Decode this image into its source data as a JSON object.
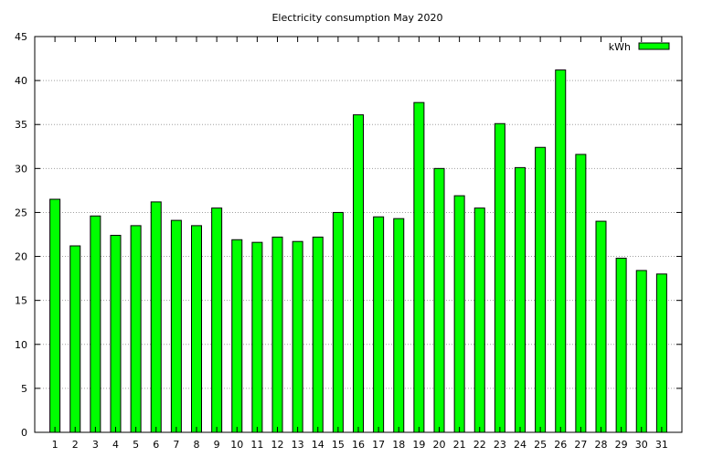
{
  "chart_data": {
    "type": "bar",
    "title": "Electricity consumption May 2020",
    "xlabel": "",
    "ylabel": "",
    "categories": [
      "1",
      "2",
      "3",
      "4",
      "5",
      "6",
      "7",
      "8",
      "9",
      "10",
      "11",
      "12",
      "13",
      "14",
      "15",
      "16",
      "17",
      "18",
      "19",
      "20",
      "21",
      "22",
      "23",
      "24",
      "25",
      "26",
      "27",
      "28",
      "29",
      "30",
      "31"
    ],
    "series": [
      {
        "name": "kWh",
        "color": "#00ff00",
        "values": [
          26.5,
          21.2,
          24.6,
          22.4,
          23.5,
          26.2,
          24.1,
          23.5,
          25.5,
          21.9,
          21.6,
          22.2,
          21.7,
          22.2,
          25.0,
          36.1,
          24.5,
          24.3,
          37.5,
          30.0,
          26.9,
          25.5,
          35.1,
          30.1,
          32.4,
          41.2,
          31.6,
          24.0,
          19.8,
          18.4,
          18.0
        ]
      }
    ],
    "ylim": [
      0,
      45
    ],
    "yticks": [
      0,
      5,
      10,
      15,
      20,
      25,
      30,
      35,
      40,
      45
    ],
    "grid": true,
    "legend_position": "top-right"
  }
}
